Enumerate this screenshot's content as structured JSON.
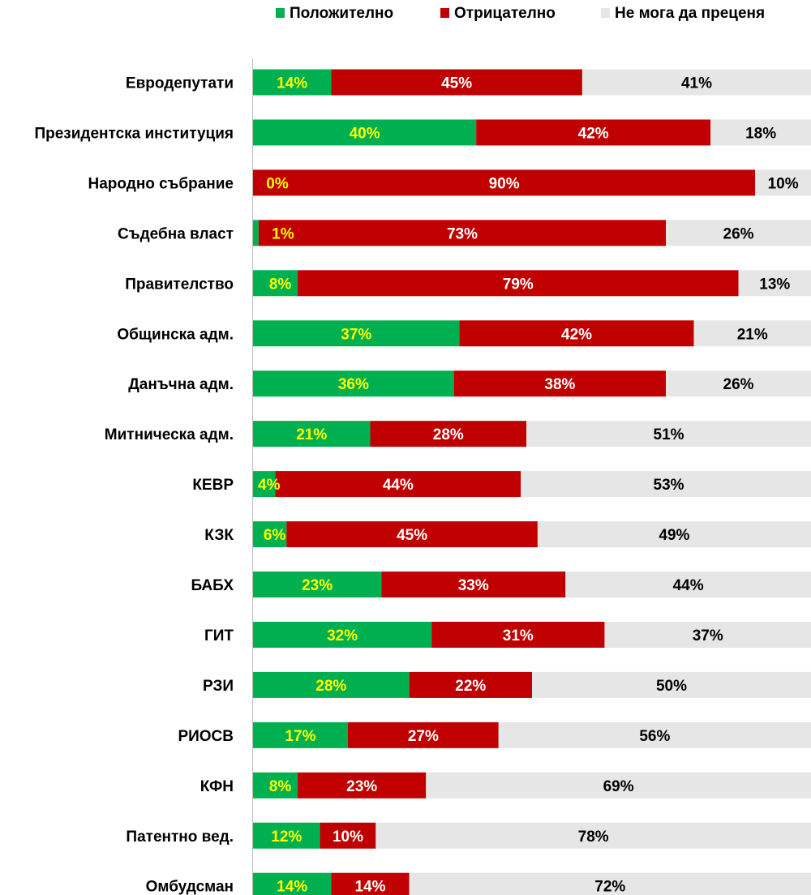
{
  "chart_data": {
    "type": "bar",
    "orientation": "horizontal",
    "stacked": true,
    "title": "",
    "xlabel": "",
    "ylabel": "",
    "legend_position": "top-right",
    "grid": false,
    "categories": [
      "Евродепутати",
      "Президентска институция",
      "Народно събрание",
      "Съдебна власт",
      "Правителство",
      "Общинска адм.",
      "Данъчна адм.",
      "Митническа адм.",
      "КЕВР",
      "КЗК",
      "БАБХ",
      "ГИТ",
      "РЗИ",
      "РИОСВ",
      "КФН",
      "Патентно вед.",
      "Омбудсман"
    ],
    "series": [
      {
        "name": "Положително",
        "color": "#00b050",
        "label_color": "#ffff00",
        "values": [
          14,
          40,
          0,
          1,
          8,
          37,
          36,
          21,
          4,
          6,
          23,
          32,
          28,
          17,
          8,
          12,
          14
        ]
      },
      {
        "name": "Отрицателно",
        "color": "#c00000",
        "label_color": "#ffffff",
        "values": [
          45,
          42,
          90,
          73,
          79,
          42,
          38,
          28,
          44,
          45,
          33,
          31,
          22,
          27,
          23,
          10,
          14
        ]
      },
      {
        "name": "Не мога да преценя",
        "color": "#e6e6e6",
        "label_color": "#000000",
        "values": [
          41,
          18,
          10,
          26,
          13,
          21,
          26,
          51,
          53,
          49,
          44,
          37,
          50,
          56,
          69,
          78,
          72
        ]
      }
    ],
    "xlim": [
      0,
      100
    ],
    "value_suffix": "%"
  }
}
